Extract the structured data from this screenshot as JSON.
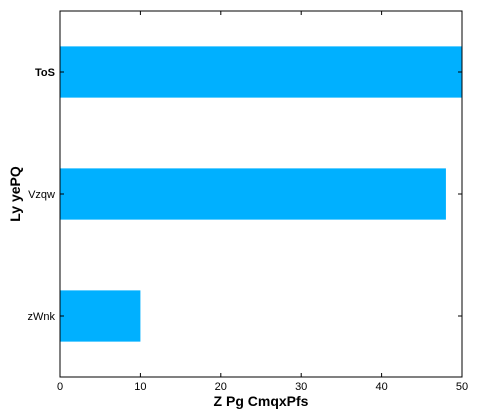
{
  "chart_data": {
    "type": "bar",
    "orientation": "horizontal",
    "categories": [
      "zWnk",
      "Vzqw",
      "ToS"
    ],
    "values": [
      10,
      48,
      50
    ],
    "bold_categories": [
      "ToS"
    ],
    "title": "",
    "xlabel": "Z Pg CmqxPfs",
    "ylabel": "Ly yePQ",
    "xlim": [
      0,
      50
    ],
    "xticks": [
      0,
      10,
      20,
      30,
      40,
      50
    ],
    "grid": false,
    "legend": "none",
    "bar_color": "#00b0ff",
    "frame_color": "#000000"
  }
}
